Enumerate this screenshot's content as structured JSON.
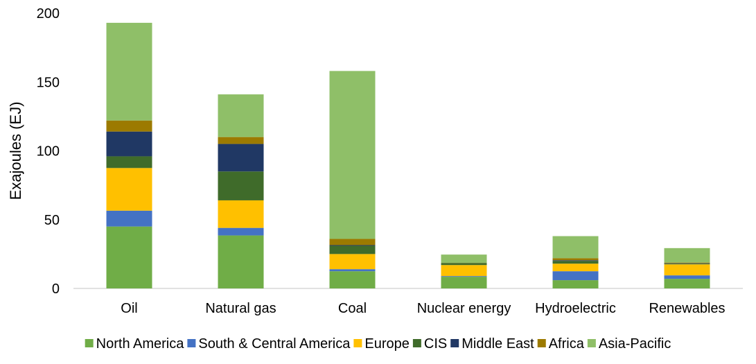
{
  "chart_data": {
    "type": "bar",
    "stacked": true,
    "title": "",
    "xlabel": "",
    "ylabel": "Exajoules (EJ)",
    "ylim": [
      0,
      200
    ],
    "yticks": [
      0,
      50,
      100,
      150,
      200
    ],
    "grid": false,
    "legend_position": "bottom",
    "categories": [
      "Oil",
      "Natural gas",
      "Coal",
      "Nuclear energy",
      "Hydroelectric",
      "Renewables"
    ],
    "series": [
      {
        "name": "North America",
        "color": "#70ad47",
        "values": [
          45,
          38.5,
          12.5,
          8.5,
          6,
          7
        ]
      },
      {
        "name": "South & Central America",
        "color": "#4472c4",
        "values": [
          11.5,
          5.5,
          1.5,
          0.5,
          6.5,
          2.5
        ]
      },
      {
        "name": "Europe",
        "color": "#ffc000",
        "values": [
          31,
          20,
          11,
          8,
          5.5,
          8
        ]
      },
      {
        "name": "CIS",
        "color": "#3f6b2a",
        "values": [
          8.5,
          21,
          6,
          1.5,
          2,
          0.5
        ]
      },
      {
        "name": "Middle East",
        "color": "#203864",
        "values": [
          18,
          20,
          0.5,
          0,
          0.5,
          0.3
        ]
      },
      {
        "name": "Africa",
        "color": "#9c7a00",
        "values": [
          8,
          5,
          4.5,
          0.1,
          1.5,
          0.5
        ]
      },
      {
        "name": "Asia-Pacific",
        "color": "#8fbf68",
        "values": [
          71,
          31,
          122,
          6,
          16,
          10.5
        ]
      }
    ]
  }
}
